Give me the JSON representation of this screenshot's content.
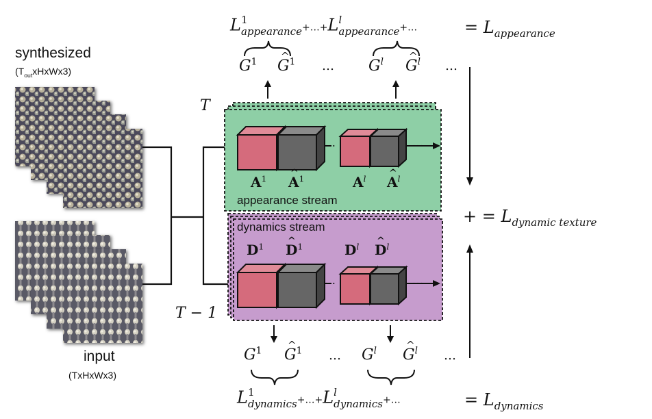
{
  "labels": {
    "synthesized": "synthesized",
    "synthesized_dims_pre": "T",
    "synthesized_dims_sub": "out",
    "synthesized_dims_post": "xHxWx3",
    "input": "input",
    "input_dims": "(TxHxWx3)",
    "T": "T",
    "T_minus_1": "T − 1",
    "appearance_stream": "appearance stream",
    "dynamics_stream": "dynamics stream",
    "dots": "…",
    "plus_equals": "+ =",
    "equals": "="
  },
  "appearance": {
    "loss1": "L",
    "loss1_sup": "1",
    "loss1_sub": "appearance",
    "lossl_sup": "l",
    "plus_dots": "+…+",
    "trailing": "+…",
    "total_sub": "appearance",
    "G1": "G",
    "G1_sup": "1",
    "Gl_sup": "l",
    "A1": "A",
    "A_sup1": "1",
    "A_supl": "l"
  },
  "dynamics": {
    "loss_sub": "dynamics",
    "D": "D"
  },
  "total": {
    "loss_sub": "dynamic texture"
  },
  "colors": {
    "appearance_box": "#8ecfa6",
    "dynamics_box": "#c69ccd",
    "cube_red": "#d56b7c",
    "cube_gray": "#666666"
  }
}
